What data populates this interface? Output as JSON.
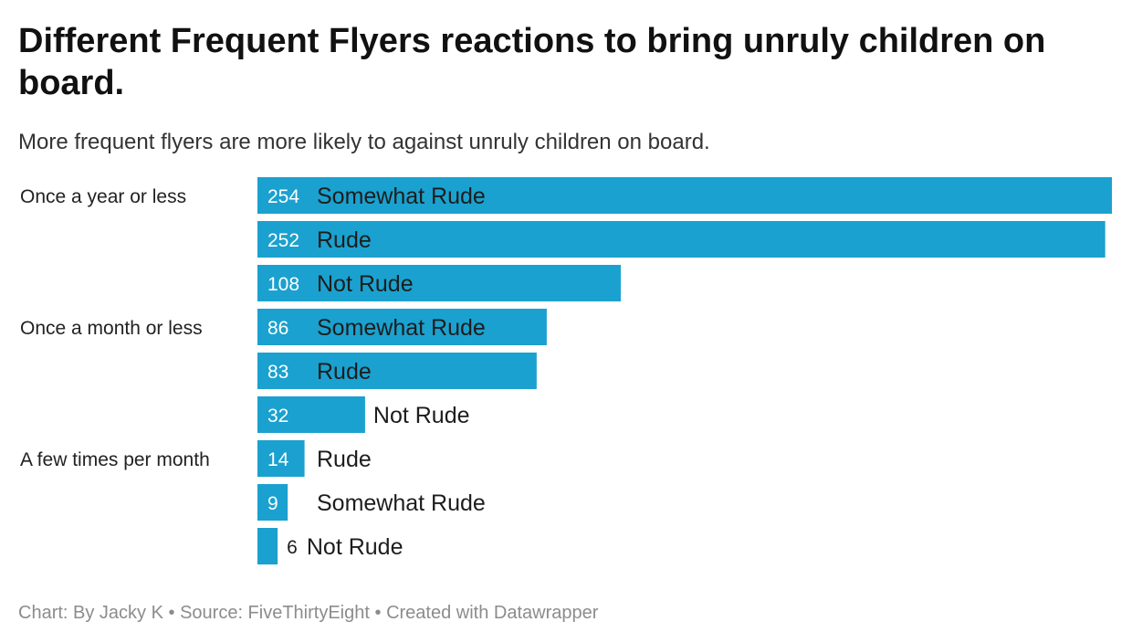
{
  "header": {
    "title": "Different Frequent Flyers reactions to bring unruly children on board.",
    "subtitle": "More frequent flyers are more likely to against unruly children on board."
  },
  "footer": {
    "chart_credit": "Chart: By Jacky K",
    "separator": "•",
    "source": "Source: FiveThirtyEight",
    "tool": "Created with Datawrapper"
  },
  "colors": {
    "bar": "#1aa1cf",
    "label_inside": "#ffffff",
    "label_outside": "#1d1d1d"
  },
  "chart_data": {
    "type": "bar",
    "orientation": "horizontal",
    "title": "Different Frequent Flyers reactions to bring unruly children on board.",
    "subtitle": "More frequent flyers are more likely to against unruly children on board.",
    "xlim": [
      0,
      254
    ],
    "grid": false,
    "groups": [
      {
        "label": "Once a year or less",
        "bars": [
          {
            "category": "Somewhat Rude",
            "value": 254
          },
          {
            "category": "Rude",
            "value": 252
          },
          {
            "category": "Not Rude",
            "value": 108
          }
        ]
      },
      {
        "label": "Once a month or less",
        "bars": [
          {
            "category": "Somewhat Rude",
            "value": 86
          },
          {
            "category": "Rude",
            "value": 83
          },
          {
            "category": "Not Rude",
            "value": 32
          }
        ]
      },
      {
        "label": "A few times per month",
        "bars": [
          {
            "category": "Rude",
            "value": 14
          },
          {
            "category": "Somewhat Rude",
            "value": 9
          },
          {
            "category": "Not Rude",
            "value": 6
          }
        ]
      }
    ]
  }
}
